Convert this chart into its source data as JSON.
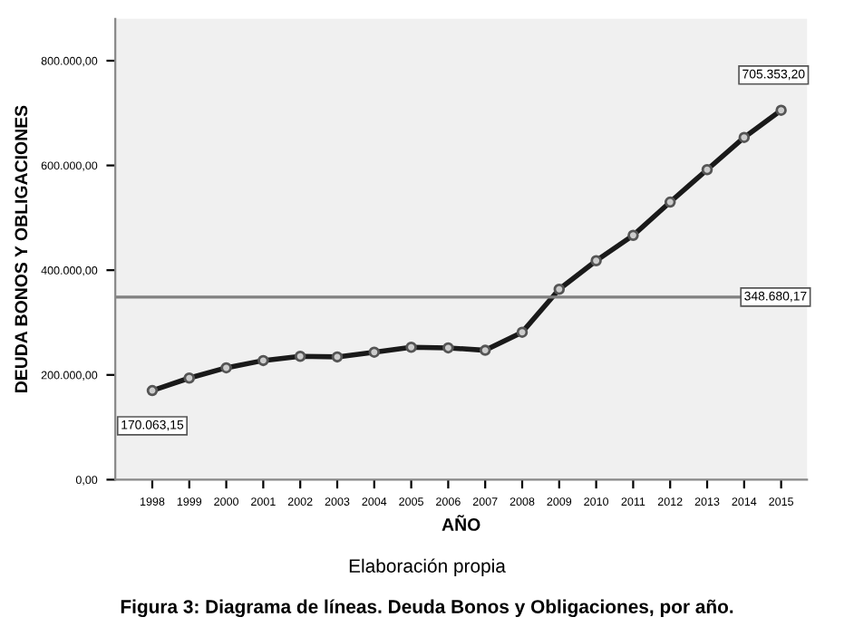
{
  "chart_data": {
    "type": "line",
    "xlabel": "AÑO",
    "ylabel": "DEUDA BONOS Y OBLIGACIONES",
    "categories": [
      "1998",
      "1999",
      "2000",
      "2001",
      "2002",
      "2003",
      "2004",
      "2005",
      "2006",
      "2007",
      "2008",
      "2009",
      "2010",
      "2011",
      "2012",
      "2013",
      "2014",
      "2015"
    ],
    "series": [
      {
        "color": "#1a1a1a",
        "values": [
          170063.15,
          194000,
          213600,
          227500,
          235500,
          234400,
          243400,
          252800,
          251700,
          247000,
          281500,
          363600,
          418000,
          466500,
          530000,
          592000,
          653500,
          705353.2
        ],
        "value_labels": [
          "170.063,15",
          null,
          null,
          null,
          null,
          null,
          null,
          null,
          null,
          null,
          null,
          null,
          null,
          null,
          null,
          null,
          null,
          "705.353,20"
        ]
      }
    ],
    "marker": "circle",
    "ylim": [
      0,
      880000
    ],
    "yticks": [
      {
        "value": 0,
        "label": "0,00"
      },
      {
        "value": 200000,
        "label": "200.000,00"
      },
      {
        "value": 400000,
        "label": "400.000,00"
      },
      {
        "value": 600000,
        "label": "600.000,00"
      },
      {
        "value": 800000,
        "label": "800.000,00"
      }
    ],
    "ref_lines": [
      {
        "axis": "y",
        "value": 348680.17,
        "label": "348.680,17",
        "color": "#808080"
      }
    ],
    "grid": false,
    "legend": false,
    "annotations": [
      "Elaboración propia",
      "Figura 3: Diagrama de líneas. Deuda Bonos y Obligaciones, por año."
    ]
  }
}
